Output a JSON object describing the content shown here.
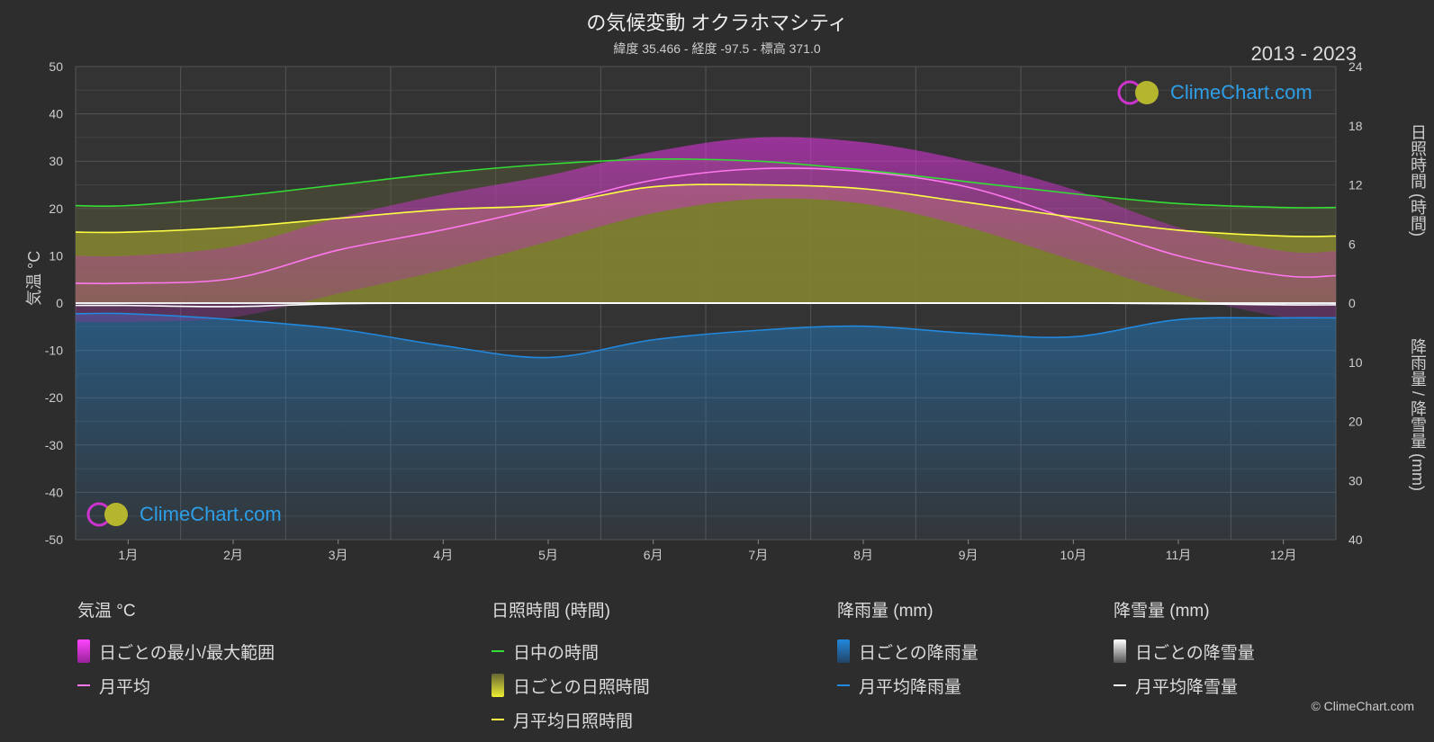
{
  "header": {
    "title": "の気候変動 オクラホマシティ",
    "subtitle": "緯度 35.466 - 経度 -97.5 - 標高 371.0",
    "years": "2013 - 2023"
  },
  "axes": {
    "left_title": "気温 °C",
    "right_top_title": "日照時間 (時間)",
    "right_bottom_title": "降雨量 / 降雪量 (mm)"
  },
  "logo_text": "ClimeChart.com",
  "copyright": "© ClimeChart.com",
  "legend": {
    "temp": {
      "head": "気温 °C",
      "range": "日ごとの最小/最大範囲",
      "avg": "月平均"
    },
    "sun": {
      "head": "日照時間 (時間)",
      "daylight": "日中の時間",
      "daily": "日ごとの日照時間",
      "avg": "月平均日照時間"
    },
    "rain": {
      "head": "降雨量 (mm)",
      "daily": "日ごとの降雨量",
      "avg": "月平均降雨量"
    },
    "snow": {
      "head": "降雪量 (mm)",
      "daily": "日ごとの降雪量",
      "avg": "月平均降雪量"
    }
  },
  "colors": {
    "background": "#2d2d2d",
    "temp_avg": "#ff77ee",
    "temp_range": "#cc33cc",
    "daylight": "#33dd33",
    "sunshine_avg": "#ffff44",
    "sunshine_fill": "#8a8a30",
    "rain": "#2288dd",
    "snow": "#ffffff"
  },
  "chart_data": {
    "type": "line",
    "categories": [
      "1月",
      "2月",
      "3月",
      "4月",
      "5月",
      "6月",
      "7月",
      "8月",
      "9月",
      "10月",
      "11月",
      "12月"
    ],
    "y_left": {
      "ylim": [
        -50,
        50
      ],
      "ticks": [
        50,
        40,
        30,
        20,
        10,
        0,
        -10,
        -20,
        -30,
        -40,
        -50
      ]
    },
    "y_right_sun": {
      "ylim": [
        0,
        24
      ],
      "ticks": [
        24,
        18,
        12,
        6,
        0
      ]
    },
    "y_right_precip": {
      "ylim": [
        0,
        40
      ],
      "ticks": [
        0,
        10,
        20,
        30,
        40
      ]
    },
    "series": [
      {
        "name": "月平均",
        "axis": "temp",
        "values": [
          4.2,
          5.2,
          11.2,
          15.5,
          20.5,
          26.0,
          28.4,
          27.8,
          24.5,
          17.5,
          10.0,
          5.8
        ]
      },
      {
        "name": "日中の時間",
        "axis": "sun",
        "values": [
          9.9,
          10.8,
          12.0,
          13.2,
          14.1,
          14.6,
          14.4,
          13.5,
          12.3,
          11.1,
          10.1,
          9.7
        ]
      },
      {
        "name": "月平均日照時間",
        "axis": "sun",
        "values": [
          7.2,
          7.7,
          8.6,
          9.5,
          10.0,
          11.8,
          12.0,
          11.6,
          10.2,
          8.7,
          7.4,
          6.8
        ]
      },
      {
        "name": "月平均降雨量",
        "axis": "precip",
        "values": [
          1.8,
          2.8,
          4.4,
          7.2,
          9.2,
          6.2,
          4.6,
          3.9,
          5.1,
          5.7,
          2.8,
          2.5
        ]
      },
      {
        "name": "月平均降雪量",
        "axis": "precip",
        "values": [
          0.4,
          0.6,
          0.1,
          0,
          0,
          0,
          0,
          0,
          0,
          0,
          0.1,
          0.3
        ]
      }
    ],
    "temp_range_band": {
      "min": [
        -4,
        -3,
        2,
        7,
        13,
        19,
        22,
        21,
        16,
        9,
        2,
        -3
      ],
      "max": [
        10,
        12,
        18,
        23,
        27,
        32,
        35,
        34,
        30,
        24,
        16,
        11
      ]
    },
    "grid": true
  }
}
